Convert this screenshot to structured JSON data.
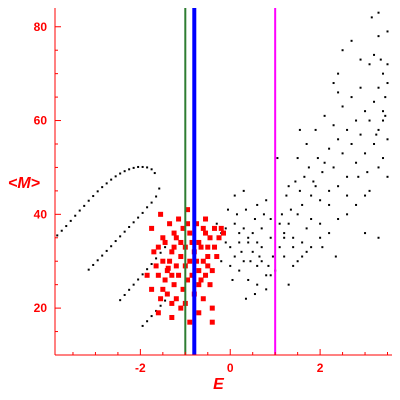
{
  "colors": {
    "axis": "#ff0000",
    "text": "#ff0000",
    "black_points": "#000000",
    "red_points": "#ff0000",
    "line_green": "#2e7d32",
    "line_blue": "#0000ff",
    "line_magenta": "#ff00ff"
  },
  "chart_data": {
    "type": "scatter",
    "title": "",
    "xlabel": "E",
    "ylabel": "<M>",
    "xlim": [
      -3.9,
      3.6
    ],
    "ylim": [
      10,
      84
    ],
    "x_ticks": [
      -2,
      0,
      2
    ],
    "x_tick_labels": [
      "-2",
      "0",
      "2"
    ],
    "y_ticks": [
      20,
      40,
      60,
      80
    ],
    "y_tick_labels": [
      "20",
      "40",
      "60",
      "80"
    ],
    "grid": false,
    "vertical_lines": [
      {
        "x": -1.0,
        "color": "#2e7d32"
      },
      {
        "x": -0.8,
        "color": "#0000ff"
      },
      {
        "x": 1.0,
        "color": "#ff00ff"
      }
    ],
    "series": [
      {
        "color": "#000000",
        "marker": "small-dot",
        "points": [
          [
            -3.85,
            35.5
          ],
          [
            -3.75,
            36.5
          ],
          [
            -3.65,
            37.5
          ],
          [
            -3.55,
            38.6
          ],
          [
            -3.45,
            39.7
          ],
          [
            -3.35,
            40.8
          ],
          [
            -3.25,
            41.8
          ],
          [
            -3.15,
            42.9
          ],
          [
            -3.05,
            43.9
          ],
          [
            -2.95,
            44.9
          ],
          [
            -2.85,
            45.8
          ],
          [
            -2.75,
            46.6
          ],
          [
            -2.65,
            47.4
          ],
          [
            -2.55,
            48.1
          ],
          [
            -2.45,
            48.7
          ],
          [
            -2.35,
            49.2
          ],
          [
            -2.25,
            49.6
          ],
          [
            -2.15,
            49.9
          ],
          [
            -2.05,
            50.1
          ],
          [
            -1.95,
            50.1
          ],
          [
            -1.85,
            50.0
          ],
          [
            -1.75,
            49.6
          ],
          [
            -1.68,
            48.8
          ],
          [
            -3.15,
            28.2
          ],
          [
            -3.05,
            29.2
          ],
          [
            -2.95,
            30.2
          ],
          [
            -2.85,
            31.2
          ],
          [
            -2.75,
            32.2
          ],
          [
            -2.65,
            33.2
          ],
          [
            -2.55,
            34.3
          ],
          [
            -2.45,
            35.3
          ],
          [
            -2.35,
            36.3
          ],
          [
            -2.25,
            37.3
          ],
          [
            -2.15,
            38.3
          ],
          [
            -2.05,
            39.3
          ],
          [
            -1.95,
            40.3
          ],
          [
            -1.85,
            41.5
          ],
          [
            -1.75,
            42.5
          ],
          [
            -1.65,
            43.8
          ],
          [
            -1.58,
            45.5
          ],
          [
            -2.45,
            21.7
          ],
          [
            -2.35,
            22.8
          ],
          [
            -2.25,
            23.9
          ],
          [
            -2.15,
            25.0
          ],
          [
            -2.05,
            26.1
          ],
          [
            -1.95,
            27.2
          ],
          [
            -1.85,
            28.3
          ],
          [
            -1.75,
            29.4
          ],
          [
            -1.65,
            30.6
          ],
          [
            -1.55,
            31.8
          ],
          [
            -1.45,
            33.0
          ],
          [
            -1.95,
            16.2
          ],
          [
            -1.85,
            17.2
          ],
          [
            -1.75,
            18.3
          ],
          [
            -1.65,
            19.4
          ],
          [
            -1.55,
            20.5
          ],
          [
            -1.45,
            21.6
          ],
          [
            -0.3,
            38
          ],
          [
            -0.2,
            36
          ],
          [
            -0.1,
            34
          ],
          [
            0.0,
            33
          ],
          [
            0.1,
            31
          ],
          [
            0.2,
            34
          ],
          [
            0.3,
            30
          ],
          [
            0.4,
            35
          ],
          [
            0.5,
            32
          ],
          [
            0.6,
            29
          ],
          [
            0.7,
            33
          ],
          [
            0.8,
            27
          ],
          [
            -0.1,
            37
          ],
          [
            0.1,
            38
          ],
          [
            0.3,
            37
          ],
          [
            0.5,
            36
          ],
          [
            0.7,
            37
          ],
          [
            0.9,
            35
          ],
          [
            0.2,
            28
          ],
          [
            0.4,
            26
          ],
          [
            0.6,
            25
          ],
          [
            0.8,
            24
          ],
          [
            -0.2,
            30
          ],
          [
            0.0,
            29
          ],
          [
            0.15,
            40
          ],
          [
            0.35,
            41
          ],
          [
            0.55,
            39
          ],
          [
            0.75,
            40
          ],
          [
            0.95,
            31
          ],
          [
            0.25,
            32
          ],
          [
            0.45,
            30
          ],
          [
            0.65,
            31
          ],
          [
            0.85,
            29
          ],
          [
            0.05,
            26
          ],
          [
            0.55,
            23
          ],
          [
            0.35,
            22
          ],
          [
            -0.05,
            41
          ],
          [
            0.1,
            44
          ],
          [
            0.3,
            45
          ],
          [
            0.6,
            42
          ],
          [
            0.8,
            43
          ],
          [
            0.9,
            39
          ],
          [
            0.2,
            36
          ],
          [
            0.4,
            34
          ],
          [
            0.6,
            34
          ],
          [
            0.7,
            30
          ],
          [
            1.1,
            33
          ],
          [
            1.2,
            36
          ],
          [
            1.3,
            38
          ],
          [
            1.4,
            35
          ],
          [
            1.5,
            40
          ],
          [
            1.6,
            42
          ],
          [
            1.7,
            37
          ],
          [
            1.8,
            44
          ],
          [
            1.9,
            46
          ],
          [
            2.0,
            43
          ],
          [
            1.15,
            40
          ],
          [
            1.25,
            44
          ],
          [
            1.35,
            41
          ],
          [
            1.45,
            47
          ],
          [
            1.55,
            45
          ],
          [
            1.65,
            48
          ],
          [
            1.75,
            50
          ],
          [
            1.85,
            47
          ],
          [
            1.95,
            52
          ],
          [
            2.05,
            49
          ],
          [
            2.1,
            51
          ],
          [
            2.2,
            54
          ],
          [
            2.3,
            50
          ],
          [
            2.4,
            56
          ],
          [
            2.5,
            53
          ],
          [
            2.6,
            58
          ],
          [
            2.7,
            55
          ],
          [
            2.8,
            60
          ],
          [
            2.9,
            57
          ],
          [
            3.0,
            62
          ],
          [
            1.2,
            31
          ],
          [
            1.4,
            29
          ],
          [
            1.6,
            34
          ],
          [
            1.8,
            39
          ],
          [
            2.0,
            38
          ],
          [
            2.2,
            42
          ],
          [
            2.4,
            46
          ],
          [
            2.6,
            48
          ],
          [
            2.8,
            51
          ],
          [
            3.0,
            53
          ],
          [
            1.3,
            46
          ],
          [
            1.5,
            52
          ],
          [
            1.7,
            55
          ],
          [
            1.9,
            58
          ],
          [
            2.1,
            61
          ],
          [
            2.3,
            59
          ],
          [
            2.5,
            63
          ],
          [
            2.7,
            65
          ],
          [
            2.9,
            67
          ],
          [
            3.1,
            60
          ],
          [
            3.2,
            64
          ],
          [
            3.3,
            58
          ],
          [
            3.4,
            62
          ],
          [
            3.5,
            56
          ],
          [
            3.2,
            55
          ],
          [
            3.3,
            50
          ],
          [
            3.4,
            52
          ],
          [
            3.5,
            48
          ],
          [
            3.1,
            45
          ],
          [
            3.0,
            44
          ],
          [
            2.8,
            42
          ],
          [
            2.6,
            40
          ],
          [
            2.4,
            39
          ],
          [
            2.2,
            36
          ],
          [
            2.0,
            35
          ],
          [
            1.8,
            33
          ],
          [
            1.6,
            31
          ],
          [
            1.4,
            33
          ],
          [
            1.2,
            35
          ],
          [
            1.1,
            38
          ],
          [
            3.3,
            67
          ],
          [
            3.4,
            70
          ],
          [
            3.5,
            72
          ],
          [
            3.2,
            74
          ],
          [
            3.1,
            72
          ],
          [
            2.9,
            73
          ],
          [
            2.7,
            77
          ],
          [
            2.5,
            75
          ],
          [
            2.4,
            70
          ],
          [
            3.3,
            78
          ],
          [
            3.5,
            79
          ],
          [
            3.15,
            82
          ],
          [
            3.3,
            83
          ],
          [
            2.3,
            68
          ],
          [
            2.4,
            66
          ],
          [
            3.45,
            65
          ],
          [
            3.35,
            73
          ],
          [
            3.0,
            36
          ],
          [
            3.3,
            35
          ],
          [
            1.0,
            28
          ],
          [
            0.9,
            27
          ],
          [
            1.3,
            25
          ],
          [
            1.5,
            30
          ],
          [
            1.7,
            32
          ],
          [
            2.2,
            45
          ],
          [
            2.6,
            44
          ],
          [
            2.85,
            48
          ],
          [
            3.05,
            49
          ],
          [
            3.25,
            57
          ],
          [
            3.45,
            61
          ],
          [
            1.55,
            58
          ],
          [
            1.05,
            52
          ],
          [
            2.05,
            33
          ],
          [
            2.35,
            31
          ],
          [
            3.4,
            60
          ],
          [
            3.5,
            68
          ]
        ]
      },
      {
        "color": "#ff0000",
        "marker": "square",
        "points": [
          [
            -1.75,
            37
          ],
          [
            -1.6,
            33
          ],
          [
            -1.5,
            30
          ],
          [
            -1.4,
            28
          ],
          [
            -1.3,
            27
          ],
          [
            -1.2,
            35
          ],
          [
            -1.1,
            31
          ],
          [
            -1.0,
            29
          ],
          [
            -0.9,
            36
          ],
          [
            -0.8,
            32
          ],
          [
            -0.7,
            34
          ],
          [
            -0.6,
            30
          ],
          [
            -0.5,
            33
          ],
          [
            -0.4,
            28
          ],
          [
            -0.3,
            31
          ],
          [
            -1.55,
            40
          ],
          [
            -1.35,
            38
          ],
          [
            -1.15,
            39
          ],
          [
            -0.95,
            41
          ],
          [
            -0.75,
            38
          ],
          [
            -0.55,
            36
          ],
          [
            -0.35,
            37
          ],
          [
            -1.45,
            26
          ],
          [
            -1.25,
            25
          ],
          [
            -1.05,
            24
          ],
          [
            -0.85,
            27
          ],
          [
            -0.65,
            26
          ],
          [
            -0.45,
            25
          ],
          [
            -0.25,
            35
          ],
          [
            -1.65,
            29
          ],
          [
            -1.5,
            35
          ],
          [
            -1.3,
            32
          ],
          [
            -1.1,
            34
          ],
          [
            -0.9,
            30
          ],
          [
            -0.7,
            28
          ],
          [
            -0.5,
            31
          ],
          [
            -1.4,
            23
          ],
          [
            -1.2,
            22
          ],
          [
            -1.0,
            21
          ],
          [
            -0.8,
            23
          ],
          [
            -0.6,
            22
          ],
          [
            -0.4,
            20
          ],
          [
            -1.6,
            19
          ],
          [
            -1.3,
            18
          ],
          [
            -0.9,
            17
          ],
          [
            -0.7,
            25
          ],
          [
            -1.2,
            29
          ],
          [
            -1.0,
            33
          ],
          [
            -0.6,
            37
          ],
          [
            -0.5,
            29
          ],
          [
            -1.55,
            22
          ],
          [
            -1.85,
            27
          ],
          [
            -1.7,
            32
          ],
          [
            -1.35,
            30
          ],
          [
            -1.15,
            27
          ],
          [
            -0.95,
            26
          ],
          [
            -0.75,
            30
          ],
          [
            -0.55,
            27
          ],
          [
            -1.45,
            34
          ],
          [
            -1.25,
            36
          ],
          [
            -0.85,
            34
          ],
          [
            -0.65,
            33
          ],
          [
            -0.45,
            35
          ],
          [
            -0.35,
            33
          ],
          [
            -1.05,
            37
          ],
          [
            -1.5,
            24
          ],
          [
            -1.3,
            21
          ],
          [
            -0.7,
            19
          ],
          [
            -0.4,
            17
          ],
          [
            -1.1,
            20
          ],
          [
            -0.2,
            37
          ],
          [
            -0.15,
            36
          ],
          [
            -1.75,
            24
          ],
          [
            -1.6,
            27
          ],
          [
            -1.25,
            33
          ],
          [
            -0.95,
            38
          ],
          [
            -0.55,
            39
          ],
          [
            -1.38,
            28.5
          ]
        ]
      }
    ]
  }
}
